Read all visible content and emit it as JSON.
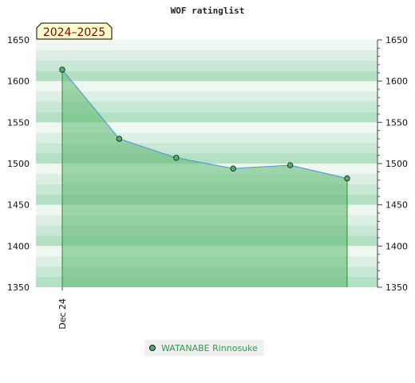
{
  "chart_data": {
    "type": "area",
    "title": "WOF ratinglist",
    "season_badge": "2024–2025",
    "xlabel": "",
    "ylabel": "",
    "ylim": [
      1350,
      1650
    ],
    "yticks": [
      1350,
      1400,
      1450,
      1500,
      1550,
      1600,
      1650
    ],
    "y_axis_sides": "both",
    "x_tick_labels": [
      {
        "label": "Dec 24",
        "index": 0
      }
    ],
    "x": [
      0,
      1,
      2,
      3,
      4,
      5
    ],
    "series": [
      {
        "name": "WATANABE Rinnosuke",
        "values": [
          1614,
          1530,
          1507,
          1494,
          1498,
          1482
        ]
      }
    ],
    "grid": "horizontal bands",
    "legend_position": "bottom-center",
    "colors": {
      "line": "#5b9bd5",
      "fill": "#5cb870",
      "marker": "#4cae6a",
      "drop_line": "#2e8b3e",
      "legend_text": "#2e9b4e",
      "badge_fill": "#ffffcc",
      "badge_text": "#8b0000",
      "band_colors": [
        "#b3dfc3",
        "#c8e7d4",
        "#dcefe3",
        "#eef7f0"
      ]
    }
  }
}
